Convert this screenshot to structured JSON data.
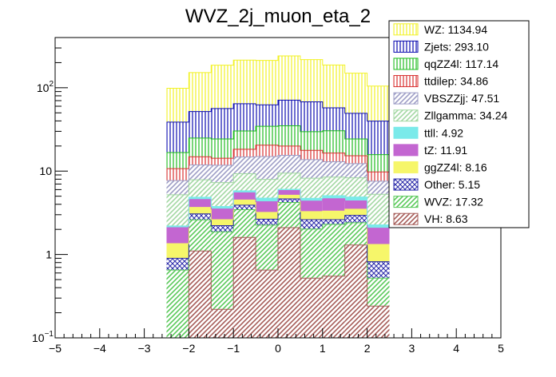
{
  "chart_data": {
    "type": "bar",
    "subtype": "stacked-histogram",
    "title": "WVZ_2j_muon_eta_2",
    "xlabel": "",
    "ylabel": "",
    "xlim": [
      -5,
      5
    ],
    "ylim": [
      0.1,
      400
    ],
    "yscale": "log",
    "grid": false,
    "legend_position": "top-right",
    "x_ticks": [
      "−5",
      "−4",
      "−3",
      "−2",
      "−1",
      "0",
      "1",
      "2",
      "3",
      "4",
      "5"
    ],
    "y_ticks": [
      {
        "value": 0.1,
        "base": "10",
        "exp": "−1"
      },
      {
        "value": 1,
        "text": "1"
      },
      {
        "value": 10,
        "text": "10"
      },
      {
        "value": 100,
        "base": "10",
        "exp": "2"
      }
    ],
    "bin_edges": [
      -2.5,
      -2.0,
      -1.5,
      -1.0,
      -0.5,
      0.0,
      0.5,
      1.0,
      1.5,
      2.0,
      2.5
    ],
    "series": [
      {
        "name": "VH",
        "total": "8.63",
        "color": "#a65c58",
        "hatch": "diag",
        "values": [
          0.1,
          1.1,
          0.22,
          1.6,
          0.65,
          2.1,
          0.52,
          0.55,
          1.3,
          0.24
        ]
      },
      {
        "name": "WVZ",
        "total": "17.32",
        "color": "#5ac95a",
        "hatch": "diag",
        "values": [
          0.55,
          1.5,
          1.65,
          1.85,
          1.6,
          2.1,
          1.5,
          1.75,
          1.1,
          0.28
        ]
      },
      {
        "name": "Other",
        "total": "5.15",
        "color": "#2727a8",
        "hatch": "cross",
        "values": [
          0.25,
          0.47,
          0.35,
          0.45,
          0.4,
          0.45,
          0.6,
          0.32,
          0.55,
          0.3
        ]
      },
      {
        "name": "ggZZ4l",
        "total": "8.16",
        "color": "#f6f66a",
        "hatch": "solid",
        "values": [
          0.45,
          0.6,
          0.4,
          0.6,
          0.55,
          0.5,
          0.65,
          0.7,
          0.55,
          0.5
        ]
      },
      {
        "name": "tZ",
        "total": "11.91",
        "color": "#c366d1",
        "hatch": "solid",
        "values": [
          0.75,
          0.9,
          0.9,
          1.0,
          1.1,
          0.7,
          1.1,
          1.35,
          0.9,
          0.75
        ]
      },
      {
        "name": "ttll",
        "total": "4.92",
        "color": "#7aeaea",
        "hatch": "solid",
        "values": [
          0.1,
          0.3,
          0.25,
          0.3,
          0.45,
          0.2,
          0.35,
          0.4,
          0.5,
          0.2
        ]
      },
      {
        "name": "Zllgamma",
        "total": "34.24",
        "color": "#a3d8a3",
        "hatch": "diag",
        "values": [
          3.0,
          3.0,
          3.5,
          3.5,
          3.2,
          3.4,
          3.5,
          3.4,
          3.4,
          3.0
        ]
      },
      {
        "name": "VBSZZjj",
        "total": "47.51",
        "color": "#9e9ec6",
        "hatch": "diag",
        "values": [
          2.5,
          4.0,
          4.5,
          5.5,
          7.0,
          6.0,
          5.5,
          4.5,
          4.0,
          2.3
        ]
      },
      {
        "name": "ttdilep",
        "total": "34.86",
        "color": "#d93030",
        "hatch": "vert",
        "values": [
          3.0,
          3.0,
          2.5,
          3.5,
          5.5,
          4.5,
          4.0,
          3.5,
          3.0,
          2.2
        ]
      },
      {
        "name": "qqZZ4l",
        "total": "117.14",
        "color": "#1ebc1e",
        "hatch": "vert",
        "values": [
          6.0,
          10.0,
          10.0,
          12.0,
          14.0,
          15.0,
          12.0,
          14.0,
          9.0,
          6.0
        ]
      },
      {
        "name": "Zjets",
        "total": "293.10",
        "color": "#0c0cb0",
        "hatch": "vert",
        "values": [
          22.0,
          27.0,
          32.0,
          34.0,
          28.0,
          36.0,
          38.0,
          27.0,
          25.0,
          24.0
        ]
      },
      {
        "name": "WZ",
        "total": "1134.94",
        "color": "#f2f226",
        "hatch": "vert",
        "values": [
          60.0,
          100.0,
          130.0,
          150.0,
          150.0,
          170.0,
          150.0,
          130.0,
          100.0,
          65.0
        ]
      }
    ]
  }
}
